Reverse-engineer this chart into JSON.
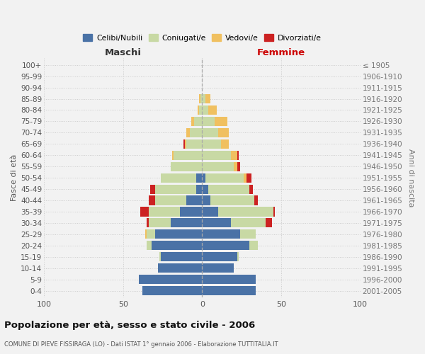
{
  "age_groups_bottom_to_top": [
    "0-4",
    "5-9",
    "10-14",
    "15-19",
    "20-24",
    "25-29",
    "30-34",
    "35-39",
    "40-44",
    "45-49",
    "50-54",
    "55-59",
    "60-64",
    "65-69",
    "70-74",
    "75-79",
    "80-84",
    "85-89",
    "90-94",
    "95-99",
    "100+"
  ],
  "birth_years_bottom_to_top": [
    "2001-2005",
    "1996-2000",
    "1991-1995",
    "1986-1990",
    "1981-1985",
    "1976-1980",
    "1971-1975",
    "1966-1970",
    "1961-1965",
    "1956-1960",
    "1951-1955",
    "1946-1950",
    "1941-1945",
    "1936-1940",
    "1931-1935",
    "1926-1930",
    "1921-1925",
    "1916-1920",
    "1911-1915",
    "1906-1910",
    "≤ 1905"
  ],
  "maschi_celibi": [
    38,
    40,
    28,
    26,
    32,
    30,
    20,
    14,
    10,
    4,
    4,
    0,
    0,
    0,
    0,
    0,
    0,
    0,
    0,
    0,
    0
  ],
  "maschi_coniugati": [
    0,
    0,
    0,
    1,
    3,
    5,
    14,
    20,
    20,
    26,
    22,
    20,
    18,
    10,
    8,
    5,
    2,
    1,
    0,
    0,
    0
  ],
  "maschi_vedovi": [
    0,
    0,
    0,
    0,
    0,
    1,
    0,
    0,
    0,
    0,
    0,
    0,
    1,
    1,
    2,
    2,
    1,
    1,
    0,
    0,
    0
  ],
  "maschi_divorziati": [
    0,
    0,
    0,
    0,
    0,
    0,
    1,
    5,
    4,
    3,
    0,
    0,
    0,
    1,
    0,
    0,
    0,
    0,
    0,
    0,
    0
  ],
  "femmine_nubili": [
    34,
    34,
    20,
    22,
    30,
    24,
    18,
    10,
    5,
    4,
    2,
    0,
    0,
    0,
    0,
    0,
    0,
    0,
    0,
    0,
    0
  ],
  "femmine_coniugate": [
    0,
    0,
    0,
    1,
    5,
    10,
    22,
    35,
    28,
    26,
    24,
    20,
    18,
    12,
    10,
    8,
    4,
    2,
    0,
    0,
    0
  ],
  "femmine_vedove": [
    0,
    0,
    0,
    0,
    0,
    0,
    0,
    0,
    0,
    0,
    2,
    2,
    4,
    5,
    7,
    8,
    5,
    3,
    0,
    0,
    0
  ],
  "femmine_divorziate": [
    0,
    0,
    0,
    0,
    0,
    0,
    4,
    1,
    2,
    2,
    3,
    2,
    1,
    0,
    0,
    0,
    0,
    0,
    0,
    0,
    0
  ],
  "color_celibi": "#4a72a6",
  "color_coniugati": "#c8d9a4",
  "color_vedovi": "#f0c060",
  "color_divorziati": "#cc2222",
  "xlim": 100,
  "title": "Popolazione per età, sesso e stato civile - 2006",
  "subtitle": "COMUNE DI PIEVE FISSIRAGA (LO) - Dati ISTAT 1° gennaio 2006 - Elaborazione TUTTITALIA.IT",
  "ylabel_left": "Fasce di età",
  "ylabel_right": "Anni di nascita",
  "label_maschi": "Maschi",
  "label_femmine": "Femmine",
  "legend_labels": [
    "Celibi/Nubili",
    "Coniugati/e",
    "Vedovi/e",
    "Divorziati/e"
  ],
  "background_color": "#f2f2f2"
}
